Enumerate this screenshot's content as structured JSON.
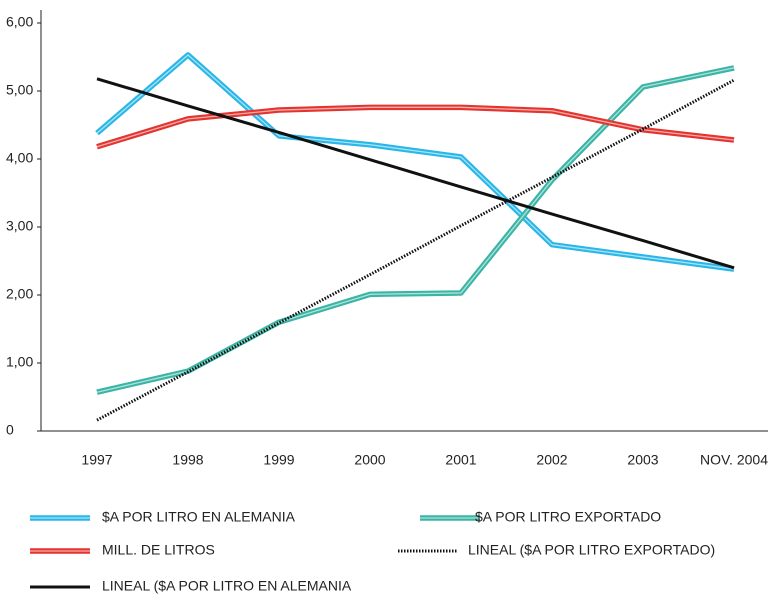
{
  "chart_data": {
    "type": "line",
    "categories": [
      "1997",
      "1998",
      "1999",
      "2000",
      "2001",
      "2002",
      "2003",
      "NOV. 2004"
    ],
    "ylim": [
      0,
      6
    ],
    "yticks": [
      0,
      {
        "value": 1,
        "label": "1,00"
      },
      {
        "value": 2,
        "label": "2,00"
      },
      {
        "value": 3,
        "label": "3,00"
      },
      {
        "value": 4,
        "label": "4,00"
      },
      {
        "value": 5,
        "label": "5,00"
      },
      {
        "value": 6,
        "label": "6,00"
      }
    ],
    "series": [
      {
        "name": "$A POR LITRO EN ALEMANIA",
        "color": "#29b6e8",
        "values": [
          4.38,
          5.53,
          4.34,
          4.21,
          4.03,
          2.74,
          2.56,
          2.38
        ]
      },
      {
        "name": "$A POR LITRO EXPORTADO",
        "color": "#3ab5a5",
        "values": [
          0.57,
          0.88,
          1.6,
          2.01,
          2.03,
          3.69,
          5.06,
          5.34
        ]
      },
      {
        "name": "MILL. DE LITROS",
        "color": "#e3342f",
        "values": [
          4.18,
          4.59,
          4.72,
          4.76,
          4.76,
          4.71,
          4.43,
          4.28
        ]
      },
      {
        "name": "LINEAL ($A POR LITRO EXPORTADO)",
        "color": "#111111",
        "dash": "dotted",
        "values": [
          0.16,
          0.87,
          1.59,
          2.3,
          3.02,
          3.73,
          4.44,
          5.16
        ]
      },
      {
        "name": "LINEAL ($A POR LITRO EN ALEMANIA",
        "color": "#111111",
        "values": [
          5.18,
          4.78,
          4.39,
          3.99,
          3.59,
          3.19,
          2.8,
          2.4
        ]
      }
    ]
  }
}
